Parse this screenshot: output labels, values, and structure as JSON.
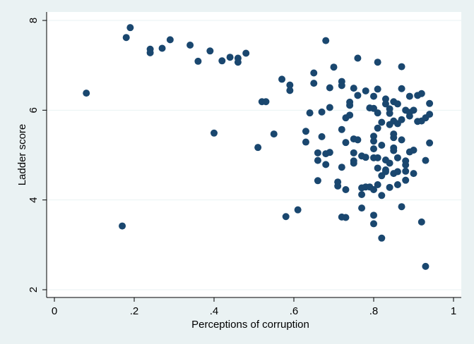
{
  "chart_data": {
    "type": "scatter",
    "xlabel": "Perceptions of corruption",
    "ylabel": "Ladder score",
    "xlim": [
      0,
      1
    ],
    "ylim": [
      2,
      8
    ],
    "xticks": [
      {
        "value": 0,
        "label": "0"
      },
      {
        "value": 0.2,
        "label": ".2"
      },
      {
        "value": 0.4,
        "label": ".4"
      },
      {
        "value": 0.6,
        "label": ".6"
      },
      {
        "value": 0.8,
        "label": ".8"
      },
      {
        "value": 1,
        "label": "1"
      }
    ],
    "yticks": [
      {
        "value": 2,
        "label": "2"
      },
      {
        "value": 4,
        "label": "4"
      },
      {
        "value": 6,
        "label": "6"
      },
      {
        "value": 8,
        "label": "8"
      }
    ],
    "grid": "horizontal",
    "colors": {
      "background": "#eaf2f3",
      "plot_background": "#ffffff",
      "marker": "#1a476f",
      "gridline": "#eaf2f3"
    },
    "points": [
      [
        0.08,
        6.38
      ],
      [
        0.17,
        3.42
      ],
      [
        0.18,
        7.62
      ],
      [
        0.19,
        7.84
      ],
      [
        0.24,
        7.36
      ],
      [
        0.24,
        7.28
      ],
      [
        0.27,
        7.38
      ],
      [
        0.29,
        7.57
      ],
      [
        0.34,
        7.45
      ],
      [
        0.36,
        7.09
      ],
      [
        0.39,
        7.32
      ],
      [
        0.4,
        5.49
      ],
      [
        0.42,
        7.1
      ],
      [
        0.44,
        7.18
      ],
      [
        0.46,
        7.16
      ],
      [
        0.46,
        7.07
      ],
      [
        0.48,
        7.27
      ],
      [
        0.51,
        5.17
      ],
      [
        0.52,
        6.19
      ],
      [
        0.53,
        6.19
      ],
      [
        0.55,
        5.47
      ],
      [
        0.57,
        6.69
      ],
      [
        0.58,
        3.63
      ],
      [
        0.59,
        6.56
      ],
      [
        0.59,
        6.44
      ],
      [
        0.61,
        3.78
      ],
      [
        0.63,
        5.53
      ],
      [
        0.63,
        5.29
      ],
      [
        0.64,
        5.94
      ],
      [
        0.65,
        6.83
      ],
      [
        0.65,
        6.6
      ],
      [
        0.66,
        5.05
      ],
      [
        0.66,
        4.88
      ],
      [
        0.66,
        4.43
      ],
      [
        0.67,
        5.96
      ],
      [
        0.67,
        5.41
      ],
      [
        0.68,
        7.55
      ],
      [
        0.68,
        5.03
      ],
      [
        0.68,
        4.79
      ],
      [
        0.69,
        6.5
      ],
      [
        0.69,
        6.06
      ],
      [
        0.69,
        5.06
      ],
      [
        0.7,
        6.96
      ],
      [
        0.71,
        4.4
      ],
      [
        0.71,
        4.31
      ],
      [
        0.72,
        5.57
      ],
      [
        0.72,
        4.73
      ],
      [
        0.72,
        3.62
      ],
      [
        0.72,
        6.64
      ],
      [
        0.72,
        6.55
      ],
      [
        0.73,
        5.83
      ],
      [
        0.73,
        5.28
      ],
      [
        0.73,
        4.23
      ],
      [
        0.73,
        3.61
      ],
      [
        0.74,
        6.18
      ],
      [
        0.74,
        6.11
      ],
      [
        0.74,
        5.89
      ],
      [
        0.75,
        6.49
      ],
      [
        0.75,
        5.36
      ],
      [
        0.75,
        5.05
      ],
      [
        0.75,
        4.87
      ],
      [
        0.75,
        4.82
      ],
      [
        0.76,
        7.16
      ],
      [
        0.76,
        6.33
      ],
      [
        0.76,
        5.34
      ],
      [
        0.77,
        4.98
      ],
      [
        0.77,
        4.27
      ],
      [
        0.77,
        4.12
      ],
      [
        0.77,
        3.82
      ],
      [
        0.78,
        6.43
      ],
      [
        0.78,
        4.95
      ],
      [
        0.78,
        4.29
      ],
      [
        0.79,
        6.05
      ],
      [
        0.79,
        4.29
      ],
      [
        0.8,
        6.31
      ],
      [
        0.8,
        6.04
      ],
      [
        0.8,
        5.42
      ],
      [
        0.8,
        5.31
      ],
      [
        0.8,
        5.14
      ],
      [
        0.8,
        4.94
      ],
      [
        0.8,
        4.23
      ],
      [
        0.8,
        3.66
      ],
      [
        0.8,
        3.47
      ],
      [
        0.81,
        7.07
      ],
      [
        0.81,
        6.47
      ],
      [
        0.81,
        5.94
      ],
      [
        0.81,
        5.6
      ],
      [
        0.81,
        4.94
      ],
      [
        0.81,
        4.71
      ],
      [
        0.81,
        4.34
      ],
      [
        0.82,
        5.73
      ],
      [
        0.82,
        5.22
      ],
      [
        0.82,
        4.54
      ],
      [
        0.82,
        4.1
      ],
      [
        0.82,
        3.15
      ],
      [
        0.83,
        6.25
      ],
      [
        0.83,
        6.14
      ],
      [
        0.83,
        4.89
      ],
      [
        0.83,
        4.67
      ],
      [
        0.83,
        4.63
      ],
      [
        0.84,
        6.03
      ],
      [
        0.84,
        5.93
      ],
      [
        0.84,
        5.68
      ],
      [
        0.84,
        4.82
      ],
      [
        0.84,
        4.28
      ],
      [
        0.85,
        6.19
      ],
      [
        0.85,
        5.76
      ],
      [
        0.85,
        5.47
      ],
      [
        0.85,
        5.39
      ],
      [
        0.85,
        5.16
      ],
      [
        0.85,
        5.1
      ],
      [
        0.85,
        4.59
      ],
      [
        0.86,
        6.14
      ],
      [
        0.86,
        5.7
      ],
      [
        0.86,
        4.94
      ],
      [
        0.86,
        4.63
      ],
      [
        0.86,
        4.34
      ],
      [
        0.87,
        6.97
      ],
      [
        0.87,
        6.48
      ],
      [
        0.87,
        5.79
      ],
      [
        0.87,
        5.34
      ],
      [
        0.87,
        3.85
      ],
      [
        0.88,
        6.0
      ],
      [
        0.88,
        4.87
      ],
      [
        0.88,
        4.78
      ],
      [
        0.88,
        4.64
      ],
      [
        0.88,
        4.44
      ],
      [
        0.89,
        6.31
      ],
      [
        0.89,
        5.95
      ],
      [
        0.89,
        5.87
      ],
      [
        0.89,
        5.07
      ],
      [
        0.9,
        6.0
      ],
      [
        0.9,
        5.11
      ],
      [
        0.9,
        4.59
      ],
      [
        0.91,
        6.33
      ],
      [
        0.91,
        5.75
      ],
      [
        0.92,
        6.37
      ],
      [
        0.92,
        5.76
      ],
      [
        0.92,
        3.51
      ],
      [
        0.93,
        2.52
      ],
      [
        0.93,
        5.83
      ],
      [
        0.93,
        4.88
      ],
      [
        0.94,
        6.15
      ],
      [
        0.94,
        5.91
      ],
      [
        0.94,
        5.27
      ]
    ]
  }
}
